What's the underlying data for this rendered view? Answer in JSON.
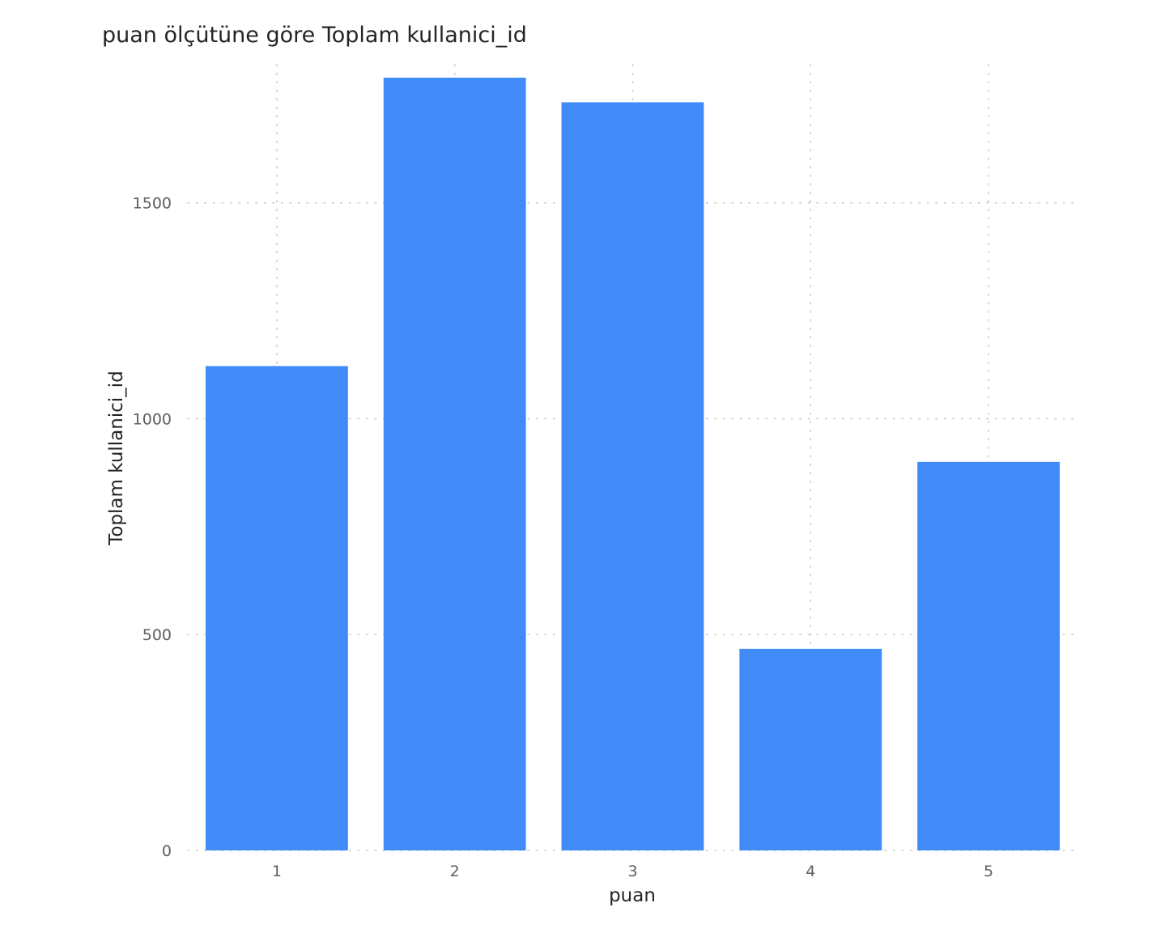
{
  "chart_data": {
    "type": "bar",
    "title": "puan ölçütüne göre Toplam kullanici_id",
    "xlabel": "puan",
    "ylabel": "Toplam kullanici_id",
    "categories": [
      "1",
      "2",
      "3",
      "4",
      "5"
    ],
    "values": [
      1122,
      1790,
      1733,
      467,
      900
    ],
    "ylim": [
      0,
      1820
    ],
    "yticks": [
      0,
      500,
      1000,
      1500
    ],
    "grid": true,
    "color": "#418BF9",
    "legend": "none"
  }
}
